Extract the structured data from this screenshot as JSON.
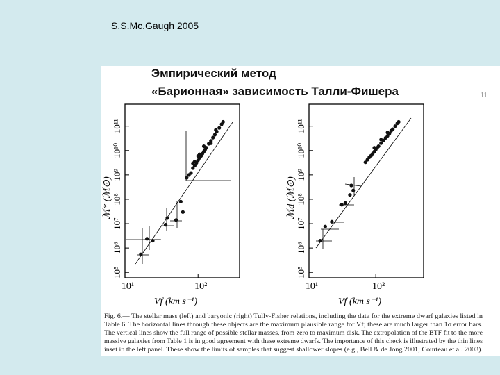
{
  "header": {
    "author": "S.S.Mc.Gaugh 2005"
  },
  "slide": {
    "title_lines": [
      "Эмпирический метод",
      "«Барионная» зависимость Талли-Фишера"
    ],
    "page_number": "11"
  },
  "chart_data": [
    {
      "type": "scatter",
      "xlabel": "Vf (km s⁻¹)",
      "ylabel": "ℳ* (ℳ⊙)",
      "xscale": "log",
      "yscale": "log",
      "color": "#111111",
      "xlim": [
        10,
        370
      ],
      "ylim": [
        60000,
        800000000000
      ],
      "xticks": [
        {
          "value": 10,
          "label": "10¹"
        },
        {
          "value": 100,
          "label": "10²"
        }
      ],
      "yticks": [
        {
          "value": 100000,
          "label": "10⁵"
        },
        {
          "value": 1000000,
          "label": "10⁶"
        },
        {
          "value": 10000000,
          "label": "10⁷"
        },
        {
          "value": 100000000,
          "label": "10⁸"
        },
        {
          "value": 1000000000,
          "label": "10⁹"
        },
        {
          "value": 10000000000,
          "label": "10¹⁰"
        },
        {
          "value": 100000000000,
          "label": "10¹¹"
        }
      ],
      "x": [
        16.5,
        20,
        24,
        36,
        38,
        50,
        58,
        62,
        70,
        75,
        80,
        85,
        90,
        90,
        95,
        100,
        105,
        105,
        110,
        115,
        120,
        125,
        130,
        140,
        150,
        160,
        170,
        180,
        195,
        210,
        220,
        85,
        100,
        120,
        150,
        175
      ],
      "values": [
        550000,
        2400000,
        2000000,
        9000000,
        17000000,
        14000000,
        80000000,
        30000000,
        760000000,
        1000000000,
        1200000000,
        1900000000,
        2400000000,
        3500000000,
        3100000000,
        4000000000,
        5000000000,
        7000000000,
        6000000000,
        7500000000,
        9000000000,
        11000000000,
        13000000000,
        19000000000,
        25000000000,
        34000000000,
        45000000000,
        60000000000,
        85000000000,
        120000000000,
        150000000000,
        3000000000,
        6000000000,
        15000000000,
        20000000000,
        70000000000
      ]
    },
    {
      "type": "scatter",
      "xlabel": "Vf (km s⁻¹)",
      "ylabel": "ℳd (ℳ⊙)",
      "xscale": "log",
      "yscale": "log",
      "color": "#111111",
      "xlim": [
        10,
        520
      ],
      "ylim": [
        60000,
        800000000000
      ],
      "xticks": [
        {
          "value": 10,
          "label": "10¹"
        },
        {
          "value": 100,
          "label": "10²"
        }
      ],
      "yticks": [
        {
          "value": 100000,
          "label": "10⁵"
        },
        {
          "value": 1000000,
          "label": "10⁶"
        },
        {
          "value": 10000000,
          "label": "10⁷"
        },
        {
          "value": 100000000,
          "label": "10⁸"
        },
        {
          "value": 1000000000,
          "label": "10⁹"
        },
        {
          "value": 10000000000,
          "label": "10¹⁰"
        },
        {
          "value": 100000000000,
          "label": "10¹¹"
        }
      ],
      "x": [
        14.7,
        17.5,
        22,
        31,
        35,
        41,
        43,
        46,
        70,
        75,
        80,
        85,
        90,
        95,
        100,
        105,
        110,
        120,
        130,
        140,
        150,
        160,
        170,
        180,
        195,
        210,
        220,
        95,
        120,
        150
      ],
      "values": [
        2000000,
        7600000,
        12000000,
        60000000,
        70000000,
        150000000,
        370000000,
        230000000,
        3300000000,
        4200000000,
        5300000000,
        6200000000,
        7500000000,
        9000000000,
        11000000000,
        13000000000,
        15000000000,
        20000000000,
        26000000000,
        33000000000,
        40000000000,
        50000000000,
        65000000000,
        75000000000,
        100000000000,
        130000000000,
        150000000000,
        13000000000,
        28000000000,
        55000000000
      ]
    }
  ],
  "caption": {
    "lines": [
      "Fig. 6.— The stellar mass (left) and baryonic (right) Tully-Fisher relations, including the data for the extreme dwarf galaxies listed in",
      "Table 6. The horizontal lines through these objects are the maximum plausible range for Vf; these are much larger than 1σ error bars.",
      "The vertical lines show the full range of possible stellar masses, from zero to maximum disk. The extrapolation of the BTF fit to the more",
      "massive galaxies from Table 1 is in good agreement with these extreme dwarfs. The importance of this check is illustrated by the thin lines",
      "inset in the left panel. These show the limits of samples that suggest shallower slopes (e.g., Bell & de Jong 2001; Courteau et al. 2003)."
    ]
  }
}
